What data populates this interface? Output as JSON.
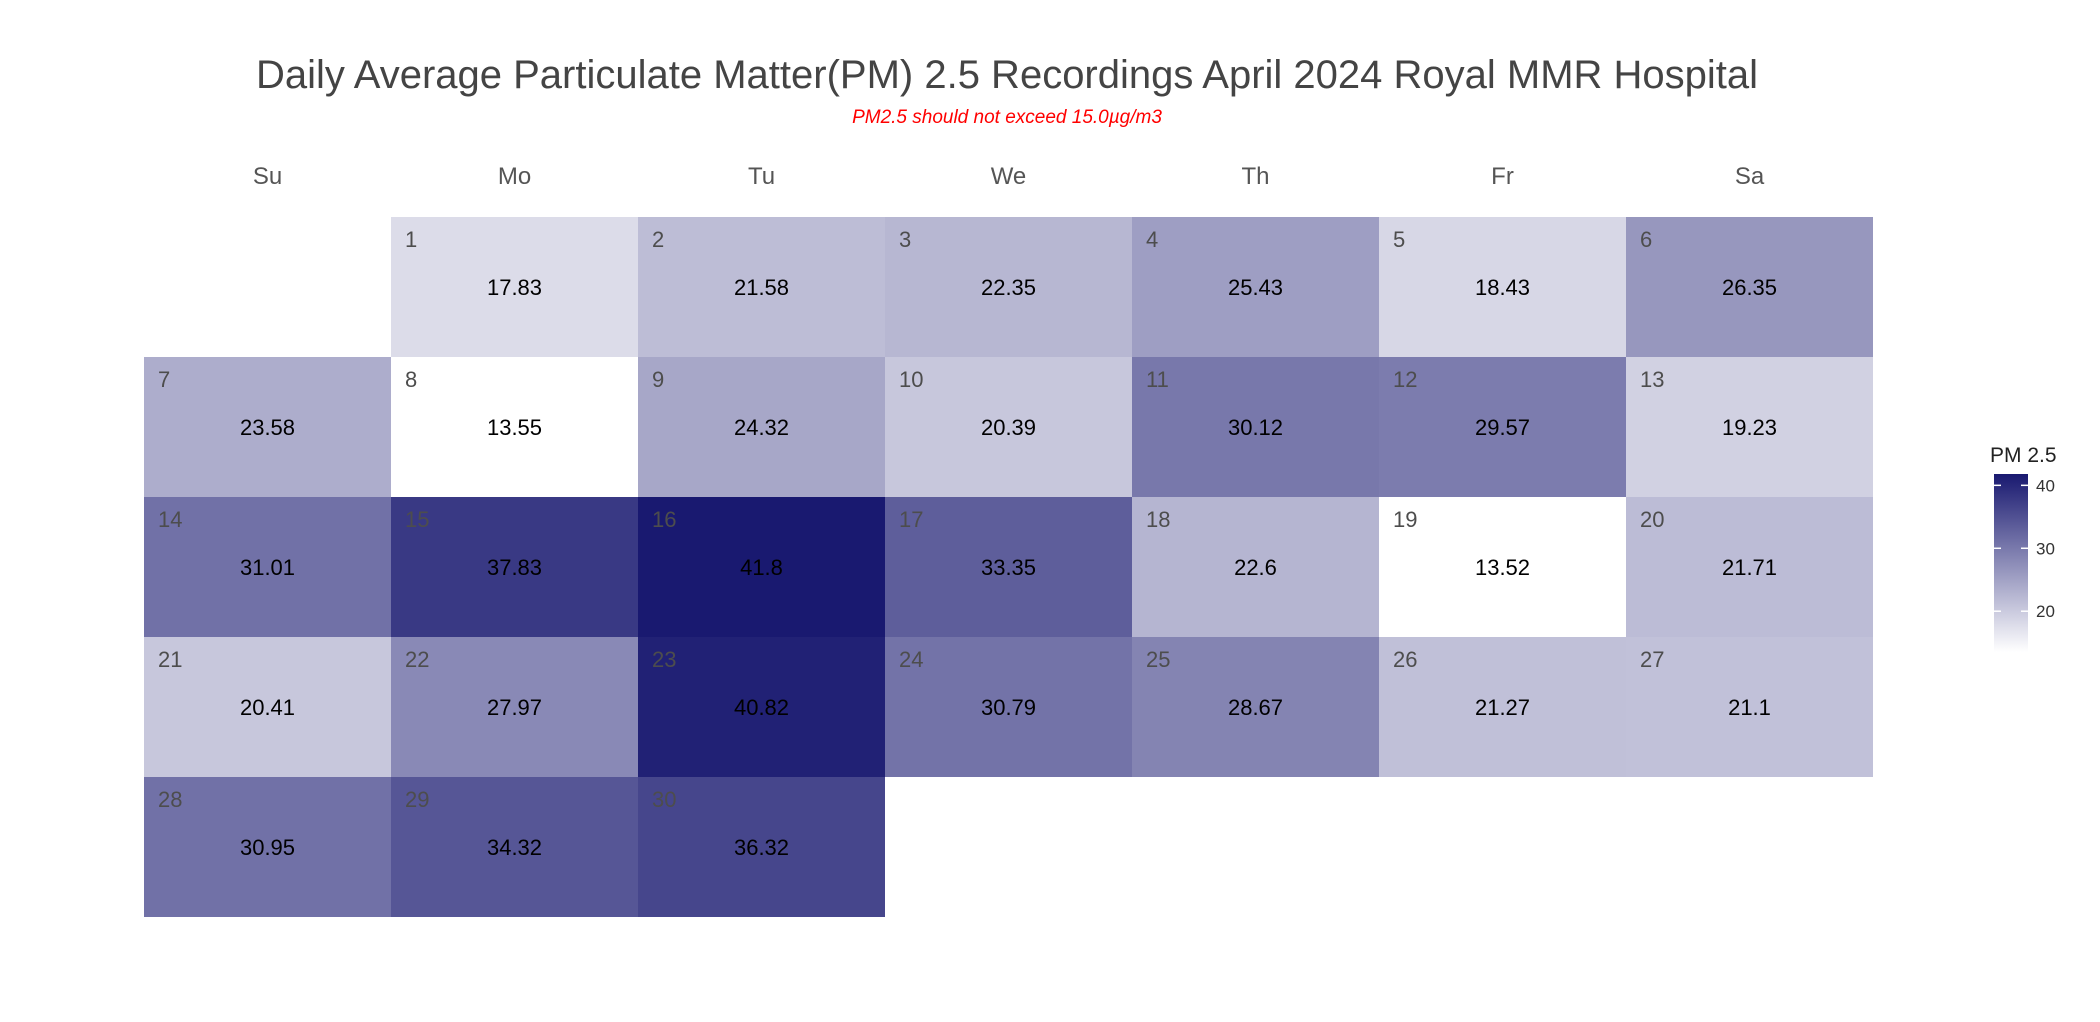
{
  "chart_data": {
    "type": "heatmap",
    "title": "Daily Average Particulate Matter(PM) 2.5 Recordings April 2024 Royal MMR Hospital",
    "subtitle": "PM2.5 should not exceed 15.0µg/m3",
    "weekdays": [
      "Su",
      "Mo",
      "Tu",
      "We",
      "Th",
      "Fr",
      "Sa"
    ],
    "first_weekday_index": 1,
    "days": [
      {
        "day": "1",
        "value": 17.83,
        "label": "17.83"
      },
      {
        "day": "2",
        "value": 21.58,
        "label": "21.58"
      },
      {
        "day": "3",
        "value": 22.35,
        "label": "22.35"
      },
      {
        "day": "4",
        "value": 25.43,
        "label": "25.43"
      },
      {
        "day": "5",
        "value": 18.43,
        "label": "18.43"
      },
      {
        "day": "6",
        "value": 26.35,
        "label": "26.35"
      },
      {
        "day": "7",
        "value": 23.58,
        "label": "23.58"
      },
      {
        "day": "8",
        "value": 13.55,
        "label": "13.55"
      },
      {
        "day": "9",
        "value": 24.32,
        "label": "24.32"
      },
      {
        "day": "10",
        "value": 20.39,
        "label": "20.39"
      },
      {
        "day": "11",
        "value": 30.12,
        "label": "30.12"
      },
      {
        "day": "12",
        "value": 29.57,
        "label": "29.57"
      },
      {
        "day": "13",
        "value": 19.23,
        "label": "19.23"
      },
      {
        "day": "14",
        "value": 31.01,
        "label": "31.01"
      },
      {
        "day": "15",
        "value": 37.83,
        "label": "37.83"
      },
      {
        "day": "16",
        "value": 41.8,
        "label": "41.8"
      },
      {
        "day": "17",
        "value": 33.35,
        "label": "33.35"
      },
      {
        "day": "18",
        "value": 22.6,
        "label": "22.6"
      },
      {
        "day": "19",
        "value": 13.52,
        "label": "13.52"
      },
      {
        "day": "20",
        "value": 21.71,
        "label": "21.71"
      },
      {
        "day": "21",
        "value": 20.41,
        "label": "20.41"
      },
      {
        "day": "22",
        "value": 27.97,
        "label": "27.97"
      },
      {
        "day": "23",
        "value": 40.82,
        "label": "40.82"
      },
      {
        "day": "24",
        "value": 30.79,
        "label": "30.79"
      },
      {
        "day": "25",
        "value": 28.67,
        "label": "28.67"
      },
      {
        "day": "26",
        "value": 21.27,
        "label": "21.27"
      },
      {
        "day": "27",
        "value": 21.1,
        "label": "21.1"
      },
      {
        "day": "28",
        "value": 30.95,
        "label": "30.95"
      },
      {
        "day": "29",
        "value": 34.32,
        "label": "34.32"
      },
      {
        "day": "30",
        "value": 36.32,
        "label": "36.32"
      }
    ],
    "color_scale": {
      "low": "#ffffff",
      "high": "#191970",
      "min": 13.52,
      "max": 41.8
    },
    "legend": {
      "title": "PM 2.5",
      "ticks": [
        {
          "value": 20,
          "label": "20"
        },
        {
          "value": 30,
          "label": "30"
        },
        {
          "value": 40,
          "label": "40"
        }
      ],
      "placement": "right"
    }
  }
}
